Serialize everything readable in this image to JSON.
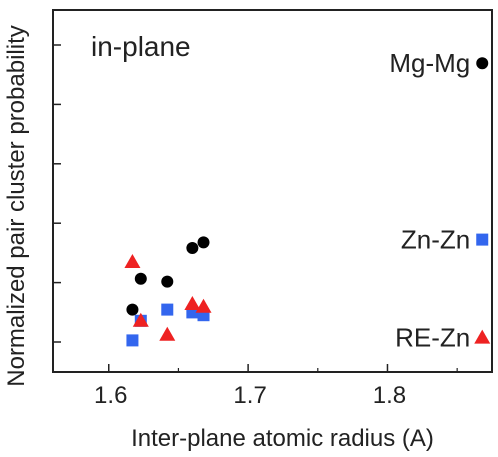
{
  "chart_data": {
    "type": "scatter",
    "title": "",
    "panel_label": "in-plane",
    "xlabel": "Inter-plane atomic radius (A)",
    "ylabel": "Normalized pair cluster probability",
    "xlim": [
      1.56,
      1.875
    ],
    "ylim": [
      0,
      1
    ],
    "x_ticks": [
      1.6,
      1.7,
      1.8
    ],
    "x_tick_labels": [
      "1.6",
      "1.7",
      "1.8"
    ],
    "y_tick_count": 6,
    "grid": false,
    "legend": "inline labels at right edge",
    "series": [
      {
        "name": "Mg-Mg",
        "marker": "circle",
        "color": "#000000",
        "points": [
          {
            "x": 1.617,
            "y": 0.08
          },
          {
            "x": 1.623,
            "y": 0.19
          },
          {
            "x": 1.642,
            "y": 0.18
          },
          {
            "x": 1.66,
            "y": 0.3
          },
          {
            "x": 1.668,
            "y": 0.32
          },
          {
            "x": 1.868,
            "y": 0.96
          }
        ]
      },
      {
        "name": "Zn-Zn",
        "marker": "square",
        "color": "#3366ee",
        "points": [
          {
            "x": 1.617,
            "y": -0.03
          },
          {
            "x": 1.623,
            "y": 0.04
          },
          {
            "x": 1.642,
            "y": 0.08
          },
          {
            "x": 1.66,
            "y": 0.07
          },
          {
            "x": 1.668,
            "y": 0.06
          },
          {
            "x": 1.868,
            "y": 0.33
          }
        ]
      },
      {
        "name": "RE-Zn",
        "marker": "triangle",
        "color": "#ee2222",
        "points": [
          {
            "x": 1.617,
            "y": 0.25
          },
          {
            "x": 1.623,
            "y": 0.04
          },
          {
            "x": 1.642,
            "y": -0.01
          },
          {
            "x": 1.66,
            "y": 0.1
          },
          {
            "x": 1.668,
            "y": 0.09
          },
          {
            "x": 1.868,
            "y": -0.02
          }
        ]
      }
    ]
  }
}
